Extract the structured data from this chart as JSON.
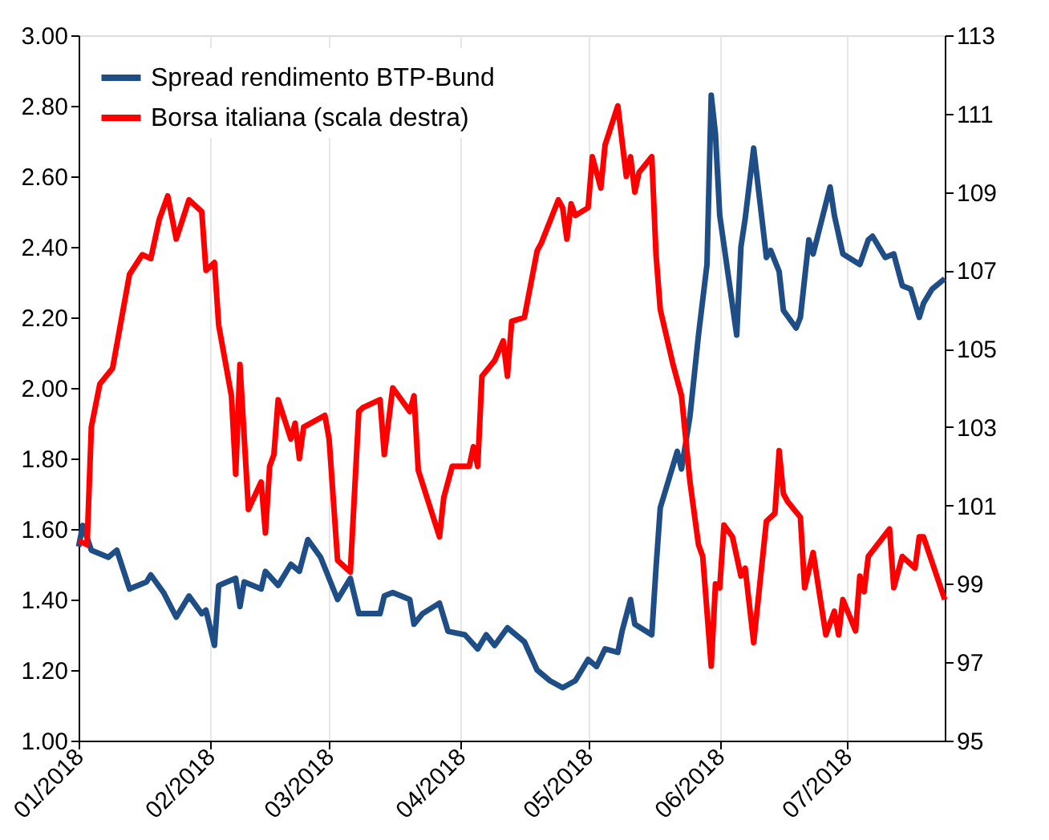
{
  "chart_data": {
    "type": "line",
    "legend": "top left",
    "grid": "x",
    "line_style": "solid",
    "xlim": [
      "2018-01-01",
      "2018-07-24"
    ],
    "xticks": [
      {
        "value": "2018-01-01",
        "label": "01/2018"
      },
      {
        "value": "2018-02-01",
        "label": "02/2018"
      },
      {
        "value": "2018-03-01",
        "label": "03/2018"
      },
      {
        "value": "2018-04-01",
        "label": "04/2018"
      },
      {
        "value": "2018-05-01",
        "label": "05/2018"
      },
      {
        "value": "2018-06-01",
        "label": "06/2018"
      },
      {
        "value": "2018-07-01",
        "label": "07/2018"
      }
    ],
    "ylim": [
      1,
      3
    ],
    "yticks": [
      {
        "value": 1,
        "label": "1.00"
      },
      {
        "value": 1.2,
        "label": "1.20"
      },
      {
        "value": 1.4,
        "label": "1.40"
      },
      {
        "value": 1.6,
        "label": "1.60"
      },
      {
        "value": 1.8,
        "label": "1.80"
      },
      {
        "value": 2,
        "label": "2.00"
      },
      {
        "value": 2.2,
        "label": "2.20"
      },
      {
        "value": 2.4,
        "label": "2.40"
      },
      {
        "value": 2.6,
        "label": "2.60"
      },
      {
        "value": 2.8,
        "label": "2.80"
      },
      {
        "value": 3,
        "label": "3.00"
      }
    ],
    "y2lim": [
      95,
      113
    ],
    "y2ticks": [
      95,
      97,
      99,
      101,
      103,
      105,
      107,
      109,
      111,
      113
    ],
    "series": [
      {
        "name": "Spread rendimento BTP-Bund",
        "color": "#1f4e87",
        "x": [
          "2018-01-01",
          "2018-01-02",
          "2018-01-04",
          "2018-01-08",
          "2018-01-10",
          "2018-01-13",
          "2018-01-17",
          "2018-01-18",
          "2018-01-21",
          "2018-01-24",
          "2018-01-27",
          "2018-01-30",
          "2018-01-31",
          "2018-02-02",
          "2018-02-03",
          "2018-02-07",
          "2018-02-08",
          "2018-02-09",
          "2018-02-13",
          "2018-02-14",
          "2018-02-17",
          "2018-02-20",
          "2018-02-22",
          "2018-02-24",
          "2018-02-27",
          "2018-03-03",
          "2018-03-06",
          "2018-03-08",
          "2018-03-13",
          "2018-03-14",
          "2018-03-16",
          "2018-03-20",
          "2018-03-21",
          "2018-03-23",
          "2018-03-27",
          "2018-03-29",
          "2018-04-02",
          "2018-04-05",
          "2018-04-07",
          "2018-04-09",
          "2018-04-12",
          "2018-04-16",
          "2018-04-19",
          "2018-04-22",
          "2018-04-25",
          "2018-04-28",
          "2018-05-01",
          "2018-05-03",
          "2018-05-05",
          "2018-05-08",
          "2018-05-09",
          "2018-05-11",
          "2018-05-12",
          "2018-05-16",
          "2018-05-17",
          "2018-05-18",
          "2018-05-22",
          "2018-05-23",
          "2018-05-25",
          "2018-05-27",
          "2018-05-29",
          "2018-05-30",
          "2018-05-31",
          "2018-06-01",
          "2018-06-05",
          "2018-06-06",
          "2018-06-07",
          "2018-06-09",
          "2018-06-12",
          "2018-06-13",
          "2018-06-15",
          "2018-06-16",
          "2018-06-19",
          "2018-06-20",
          "2018-06-22",
          "2018-06-23",
          "2018-06-27",
          "2018-06-28",
          "2018-06-30",
          "2018-07-04",
          "2018-07-06",
          "2018-07-07",
          "2018-07-10",
          "2018-07-12",
          "2018-07-14",
          "2018-07-16",
          "2018-07-18",
          "2018-07-19",
          "2018-07-21",
          "2018-07-24"
        ],
        "values": [
          1.55,
          1.61,
          1.54,
          1.52,
          1.54,
          1.43,
          1.45,
          1.47,
          1.42,
          1.35,
          1.41,
          1.36,
          1.37,
          1.27,
          1.44,
          1.46,
          1.38,
          1.45,
          1.43,
          1.48,
          1.44,
          1.5,
          1.48,
          1.57,
          1.52,
          1.4,
          1.46,
          1.36,
          1.36,
          1.41,
          1.42,
          1.4,
          1.33,
          1.36,
          1.39,
          1.31,
          1.3,
          1.26,
          1.3,
          1.27,
          1.32,
          1.28,
          1.2,
          1.17,
          1.15,
          1.17,
          1.23,
          1.21,
          1.26,
          1.25,
          1.31,
          1.4,
          1.33,
          1.3,
          1.49,
          1.66,
          1.82,
          1.77,
          1.92,
          2.15,
          2.35,
          2.83,
          2.72,
          2.49,
          2.15,
          2.4,
          2.48,
          2.68,
          2.37,
          2.39,
          2.33,
          2.22,
          2.17,
          2.2,
          2.42,
          2.38,
          2.57,
          2.49,
          2.38,
          2.35,
          2.42,
          2.43,
          2.37,
          2.38,
          2.29,
          2.28,
          2.2,
          2.24,
          2.28,
          2.31
        ]
      },
      {
        "name": "Borsa italiana (scala destra)",
        "color": "#ff0000",
        "axis": "y2",
        "x": [
          "2018-01-01",
          "2018-01-03",
          "2018-01-04",
          "2018-01-06",
          "2018-01-09",
          "2018-01-13",
          "2018-01-16",
          "2018-01-18",
          "2018-01-20",
          "2018-01-22",
          "2018-01-24",
          "2018-01-27",
          "2018-01-30",
          "2018-01-31",
          "2018-02-02",
          "2018-02-03",
          "2018-02-06",
          "2018-02-07",
          "2018-02-08",
          "2018-02-10",
          "2018-02-13",
          "2018-02-14",
          "2018-02-15",
          "2018-02-16",
          "2018-02-17",
          "2018-02-20",
          "2018-02-21",
          "2018-02-22",
          "2018-02-23",
          "2018-02-28",
          "2018-03-01",
          "2018-03-03",
          "2018-03-06",
          "2018-03-08",
          "2018-03-09",
          "2018-03-13",
          "2018-03-14",
          "2018-03-16",
          "2018-03-20",
          "2018-03-21",
          "2018-03-22",
          "2018-03-27",
          "2018-03-28",
          "2018-03-30",
          "2018-04-03",
          "2018-04-04",
          "2018-04-05",
          "2018-04-06",
          "2018-04-09",
          "2018-04-11",
          "2018-04-12",
          "2018-04-13",
          "2018-04-16",
          "2018-04-19",
          "2018-04-20",
          "2018-04-24",
          "2018-04-25",
          "2018-04-26",
          "2018-04-27",
          "2018-04-28",
          "2018-05-01",
          "2018-05-02",
          "2018-05-04",
          "2018-05-05",
          "2018-05-08",
          "2018-05-10",
          "2018-05-11",
          "2018-05-12",
          "2018-05-13",
          "2018-05-16",
          "2018-05-17",
          "2018-05-18",
          "2018-05-21",
          "2018-05-23",
          "2018-05-25",
          "2018-05-27",
          "2018-05-28",
          "2018-05-30",
          "2018-05-31",
          "2018-06-01",
          "2018-06-02",
          "2018-06-04",
          "2018-06-06",
          "2018-06-07",
          "2018-06-09",
          "2018-06-12",
          "2018-06-14",
          "2018-06-15",
          "2018-06-16",
          "2018-06-17",
          "2018-06-20",
          "2018-06-21",
          "2018-06-23",
          "2018-06-26",
          "2018-06-28",
          "2018-06-29",
          "2018-06-30",
          "2018-07-03",
          "2018-07-04",
          "2018-07-05",
          "2018-07-06",
          "2018-07-11",
          "2018-07-12",
          "2018-07-14",
          "2018-07-17",
          "2018-07-18",
          "2018-07-19",
          "2018-07-24"
        ],
        "values": [
          100.1,
          100.0,
          103.0,
          104.1,
          104.5,
          106.9,
          107.4,
          107.3,
          108.3,
          108.9,
          107.8,
          108.8,
          108.5,
          107.0,
          107.2,
          105.6,
          103.8,
          101.8,
          104.6,
          100.9,
          101.6,
          100.3,
          102.0,
          102.3,
          103.7,
          102.7,
          103.1,
          102.2,
          103.0,
          103.3,
          102.7,
          99.6,
          99.3,
          103.4,
          103.5,
          103.7,
          102.3,
          104.0,
          103.4,
          103.8,
          101.9,
          100.2,
          101.2,
          102.0,
          102.0,
          102.5,
          102.0,
          104.3,
          104.7,
          105.2,
          104.3,
          105.7,
          105.8,
          107.5,
          107.7,
          108.8,
          108.6,
          107.8,
          108.7,
          108.4,
          108.6,
          109.9,
          109.1,
          110.2,
          111.2,
          109.4,
          109.9,
          109.0,
          109.5,
          109.9,
          107.4,
          106.0,
          104.6,
          103.8,
          101.6,
          100.0,
          99.7,
          96.9,
          99.0,
          98.9,
          100.5,
          100.2,
          99.2,
          99.4,
          97.5,
          100.6,
          100.8,
          102.4,
          101.3,
          101.1,
          100.7,
          98.9,
          99.8,
          97.7,
          98.3,
          97.7,
          98.6,
          97.8,
          99.2,
          98.8,
          99.7,
          100.4,
          98.9,
          99.7,
          99.4,
          100.2,
          100.2,
          98.6
        ]
      }
    ]
  }
}
